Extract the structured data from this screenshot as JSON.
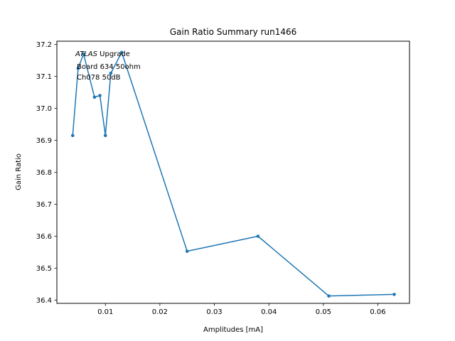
{
  "chart_data": {
    "type": "line",
    "title": "Gain Ratio Summary run1466",
    "xlabel": "Amplitudes [mA]",
    "ylabel": "Gain Ratio",
    "xlim": [
      0.0011,
      0.0658
    ],
    "ylim": [
      36.39,
      37.21
    ],
    "xticks": [
      0.01,
      0.02,
      0.03,
      0.04,
      0.05,
      0.06
    ],
    "xtick_labels": [
      "0.01",
      "0.02",
      "0.03",
      "0.04",
      "0.05",
      "0.06"
    ],
    "yticks": [
      36.4,
      36.5,
      36.6,
      36.7,
      36.8,
      36.9,
      37.0,
      37.1,
      37.2
    ],
    "ytick_labels": [
      "36.4",
      "36.5",
      "36.6",
      "36.7",
      "36.8",
      "36.9",
      "37.0",
      "37.1",
      "37.2"
    ],
    "grid": false,
    "series": [
      {
        "color": "#1f77b4",
        "x": [
          0.004,
          0.005,
          0.006,
          0.008,
          0.009,
          0.01,
          0.011,
          0.013,
          0.025,
          0.038,
          0.051,
          0.063
        ],
        "y": [
          36.915,
          37.125,
          37.17,
          37.035,
          37.04,
          36.915,
          37.11,
          37.175,
          36.553,
          36.6,
          36.413,
          36.418
        ]
      }
    ],
    "annotation": {
      "line1_italic": "ATLAS",
      "line1_rest": " Upgrade",
      "line2": "Board 634 50ohm",
      "line3": "Ch078 50dB"
    }
  }
}
